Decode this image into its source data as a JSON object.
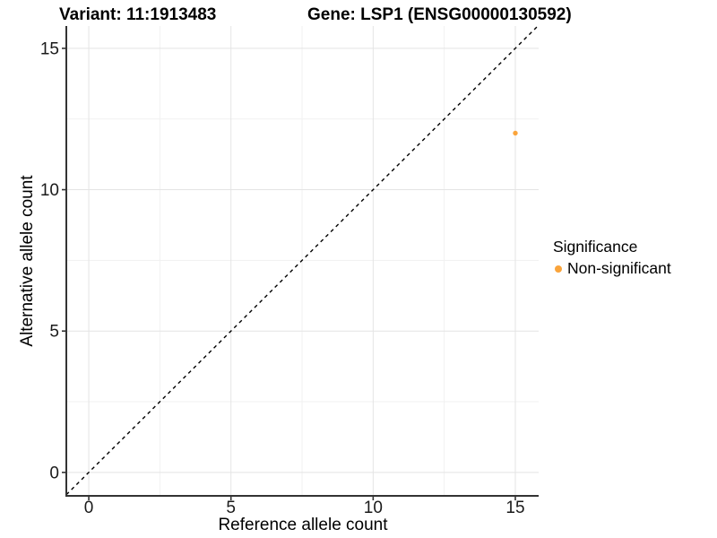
{
  "header": {
    "variant_title": "Variant: 11:1913483",
    "gene_title": "Gene: LSP1 (ENSG00000130592)"
  },
  "legend": {
    "title": "Significance",
    "items": [
      {
        "label": "Non-significant",
        "color": "#FAA43B"
      }
    ]
  },
  "chart_data": {
    "type": "scatter",
    "title": "Variant: 11:1913483   Gene: LSP1 (ENSG00000130592)",
    "xlabel": "Reference allele count",
    "ylabel": "Alternative allele count",
    "x_ticks": [
      0,
      5,
      10,
      15
    ],
    "y_ticks": [
      0,
      5,
      10,
      15
    ],
    "xlim": [
      -0.79,
      15.82
    ],
    "ylim": [
      -0.83,
      15.79
    ],
    "grid": true,
    "legend_position": "right-center",
    "identity_line": {
      "style": "dashed",
      "slope": 1,
      "intercept": 0,
      "color": "#000000"
    },
    "series": [
      {
        "name": "Non-significant",
        "color": "#FAA43B",
        "points": [
          {
            "x": 15,
            "y": 12
          }
        ]
      }
    ]
  }
}
